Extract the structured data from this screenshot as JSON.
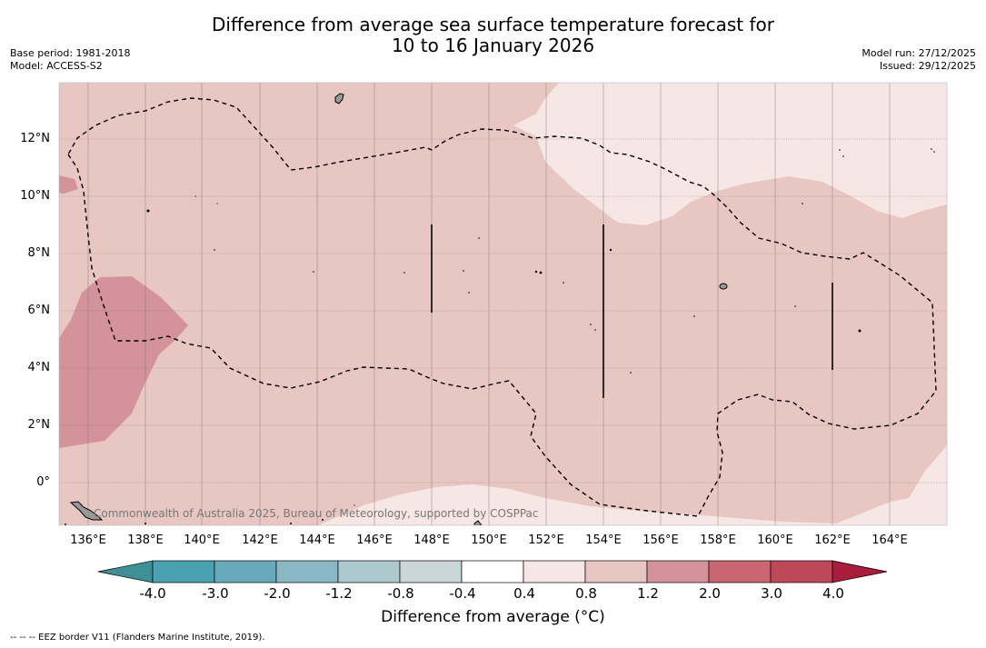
{
  "title": {
    "line1": "Difference from average sea surface temperature forecast for",
    "line2": "10 to 16 January 2026"
  },
  "meta": {
    "base_period": "Base period: 1981-2018",
    "model": "Model: ACCESS-S2",
    "model_run": "Model run: 27/12/2025",
    "issued": "Issued: 29/12/2025"
  },
  "map": {
    "latitude_labels": [
      "12°N",
      "10°N",
      "8°N",
      "6°N",
      "4°N",
      "2°N",
      "0°"
    ],
    "longitude_labels": [
      "136°E",
      "138°E",
      "140°E",
      "142°E",
      "144°E",
      "146°E",
      "148°E",
      "150°E",
      "152°E",
      "154°E",
      "156°E",
      "158°E",
      "160°E",
      "162°E",
      "164°E"
    ],
    "copyright": "Commonwealth of Australia 2025, Bureau of Meteorology, supported by COSPPac"
  },
  "colorbar": {
    "ticks": [
      "-4.0",
      "-3.0",
      "-2.0",
      "-1.2",
      "-0.8",
      "-0.4",
      "0.4",
      "0.8",
      "1.2",
      "2.0",
      "3.0",
      "4.0"
    ],
    "colors": [
      "#3f8f96",
      "#4aa1b2",
      "#68aabb",
      "#89b7c4",
      "#abc9ce",
      "#cbd6d8",
      "#ffffff",
      "#f6e6e4",
      "#e8c6c2",
      "#d4929a",
      "#c96671",
      "#bc4858",
      "#a81d3c"
    ],
    "label": "Difference from average (°C)"
  },
  "footnote": "--  --  -- EEZ border V11 (Flanders Marine Institute, 2019)."
}
